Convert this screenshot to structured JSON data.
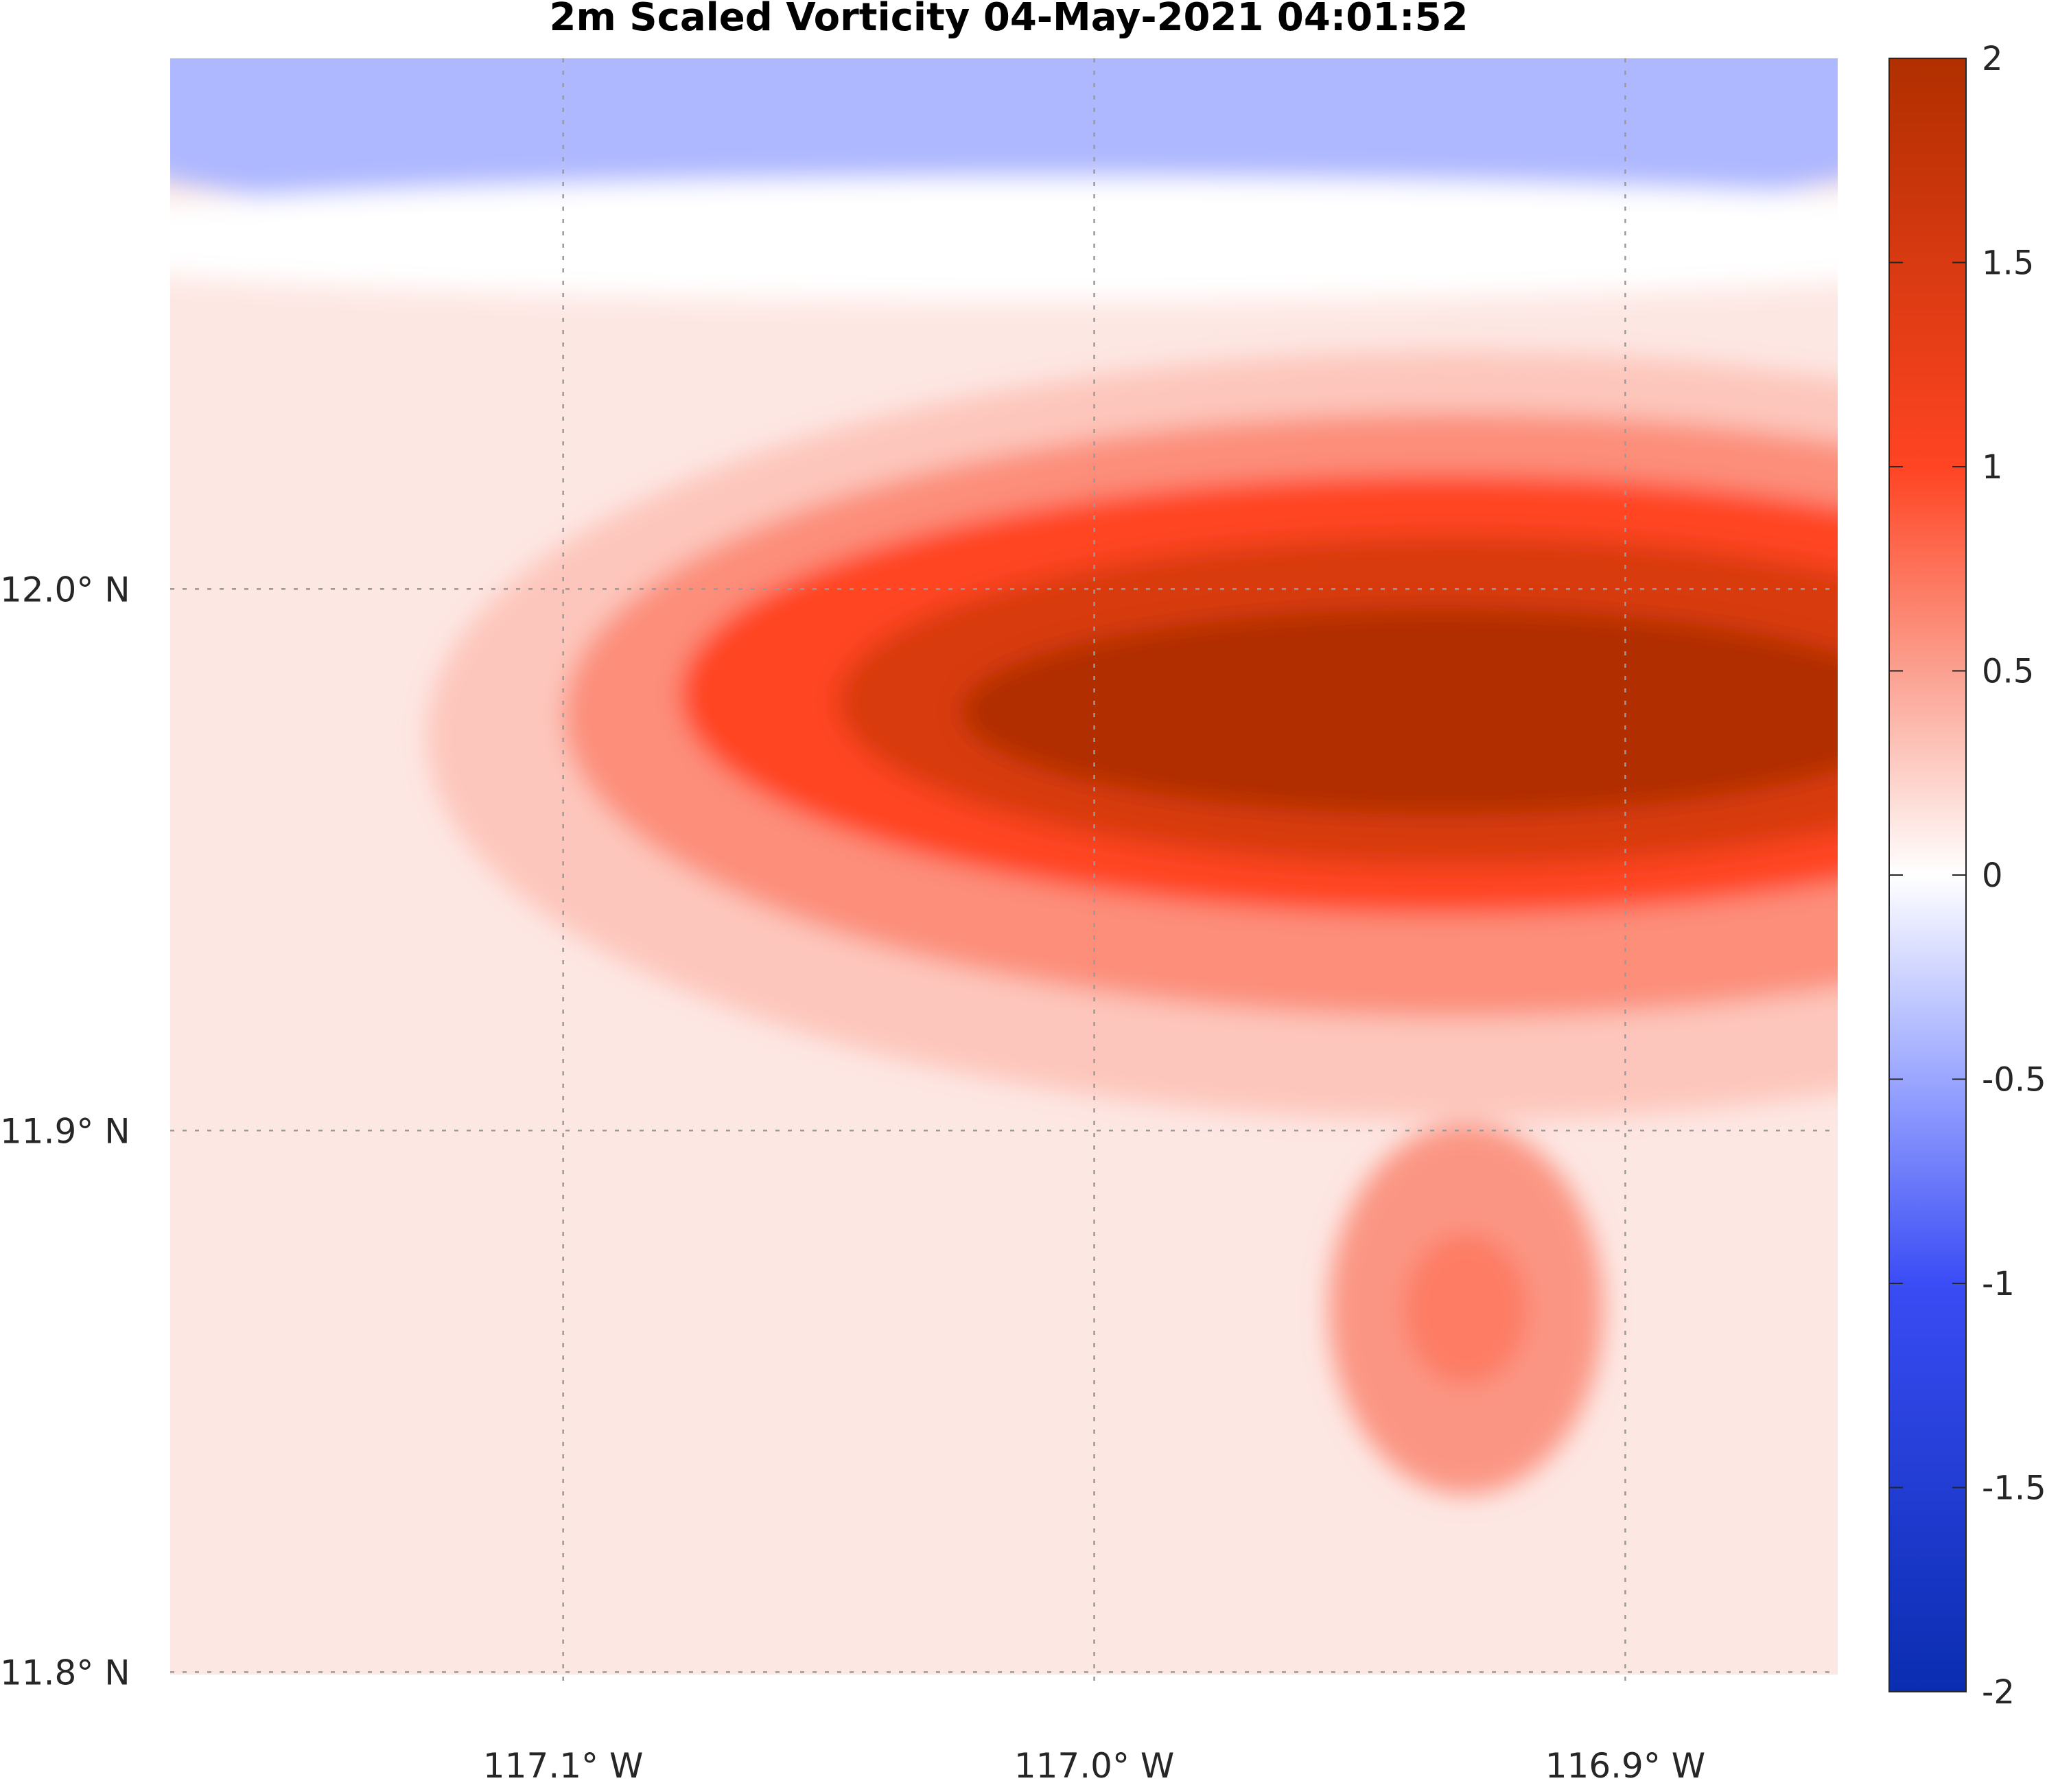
{
  "chart_data": {
    "type": "heatmap",
    "title": "2m Scaled Vorticity  04-May-2021 04:01:52",
    "x_ticks": [
      {
        "value": -117.1,
        "label": "117.1° W"
      },
      {
        "value": -117.0,
        "label": "117.0° W"
      },
      {
        "value": -116.9,
        "label": "116.9° W"
      }
    ],
    "y_ticks": [
      {
        "value": 12.0,
        "label": "12.0° N"
      },
      {
        "value": 11.9,
        "label": "11.9° N"
      },
      {
        "value": 11.8,
        "label": "11.8° N"
      }
    ],
    "xlim": [
      -117.174,
      -116.86
    ],
    "ylim": [
      11.797,
      12.098
    ],
    "grid": true,
    "colorbar": {
      "range": [
        -2,
        2
      ],
      "ticks": [
        {
          "value": 2,
          "label": "2"
        },
        {
          "value": 1.5,
          "label": "1.5"
        },
        {
          "value": 1,
          "label": "1"
        },
        {
          "value": 0.5,
          "label": "0.5"
        },
        {
          "value": 0,
          "label": "0"
        },
        {
          "value": -0.5,
          "label": "-0.5"
        },
        {
          "value": -1,
          "label": "-1"
        },
        {
          "value": -1.5,
          "label": "-1.5"
        },
        {
          "value": -2,
          "label": "-2"
        }
      ],
      "colors": {
        "max": "#b02f00",
        "high": "#ff4422",
        "mid_high": "#fba090",
        "zero": "#ffffff",
        "mid_low": "#9aa6ff",
        "low": "#3a4cf5",
        "min": "#0a2db0"
      }
    },
    "features": {
      "positive_core": {
        "lon": -116.95,
        "lat": 11.978,
        "value": 2.0
      },
      "secondary_core": {
        "lon": -116.93,
        "lat": 11.867,
        "value": 0.7
      },
      "negative_band": {
        "lat": 12.09,
        "value": -0.4
      }
    }
  }
}
